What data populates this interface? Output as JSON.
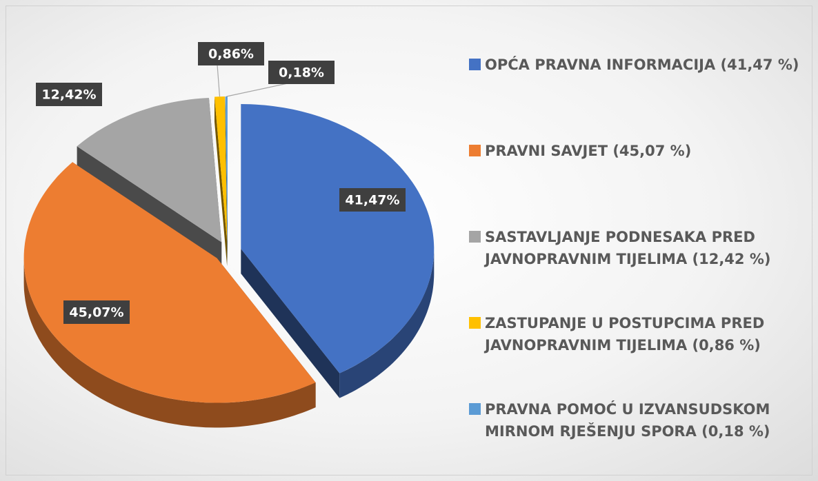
{
  "chart_data": {
    "type": "pie",
    "categories": [
      "OPĆA PRAVNA INFORMACIJA (41,47 %)",
      "PRAVNI SAVJET (45,07 %)",
      "SASTAVLJANJE PODNESAKA PRED JAVNOPRAVNIM TIJELIMA (12,42 %)",
      "ZASTUPANJE U POSTUPCIMA PRED JAVNOPRAVNIM TIJELIMA (0,86 %)",
      "PRAVNA POMOĆ U IZVANSUDSKOM MIRNOM RJEŠENJU SPORA (0,18 %)"
    ],
    "values": [
      41.47,
      45.07,
      12.42,
      0.86,
      0.18
    ],
    "value_labels": [
      "41,47%",
      "45,07%",
      "12,42%",
      "0,86%",
      "0,18%"
    ],
    "colors": [
      "#4472c4",
      "#ed7d31",
      "#a5a5a5",
      "#ffc000",
      "#5b9bd5"
    ],
    "legend": "right"
  }
}
